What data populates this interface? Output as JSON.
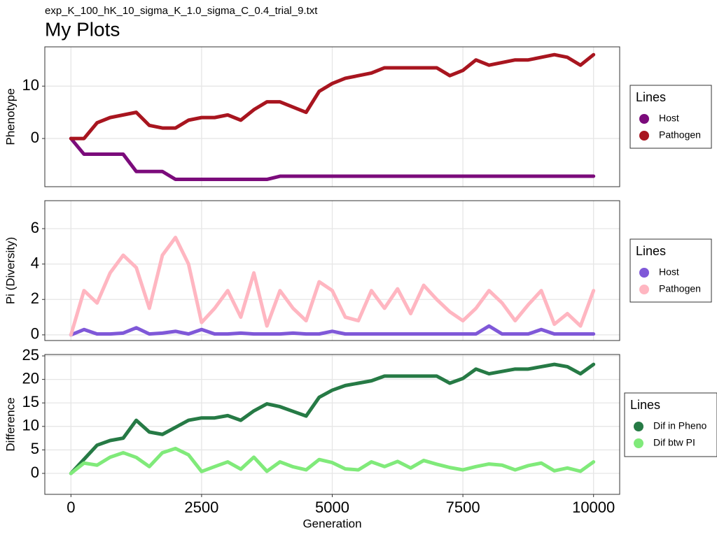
{
  "chart_data": [
    {
      "type": "line",
      "subtitle": "exp_K_100_hK_10_sigma_K_1.0_sigma_C_0.4_trial_9.txt",
      "title": "My Plots",
      "ylabel": "Phenotype",
      "legend_title": "Lines",
      "legend": "right",
      "grid": true,
      "xlim": [
        -500,
        10500
      ],
      "xticks": [
        0,
        2500,
        5000,
        7500,
        10000
      ],
      "ylim": [
        -9.2,
        17.5
      ],
      "yticks": [
        0,
        10
      ],
      "x": [
        0,
        250,
        500,
        750,
        1000,
        1250,
        1500,
        1750,
        2000,
        2250,
        2500,
        2750,
        3000,
        3250,
        3500,
        3750,
        4000,
        4250,
        4500,
        4750,
        5000,
        5250,
        5500,
        5750,
        6000,
        6250,
        6500,
        6750,
        7000,
        7250,
        7500,
        7750,
        8000,
        8250,
        8500,
        8750,
        9000,
        9250,
        9500,
        9750,
        10000
      ],
      "series": [
        {
          "name": "Host",
          "color": "#7b0b7b",
          "values": [
            0,
            -3,
            -3,
            -3,
            -3,
            -6.3,
            -6.3,
            -6.3,
            -7.8,
            -7.8,
            -7.8,
            -7.8,
            -7.8,
            -7.8,
            -7.8,
            -7.8,
            -7.2,
            -7.2,
            -7.2,
            -7.2,
            -7.2,
            -7.2,
            -7.2,
            -7.2,
            -7.2,
            -7.2,
            -7.2,
            -7.2,
            -7.2,
            -7.2,
            -7.2,
            -7.2,
            -7.2,
            -7.2,
            -7.2,
            -7.2,
            -7.2,
            -7.2,
            -7.2,
            -7.2,
            -7.2
          ]
        },
        {
          "name": "Pathogen",
          "color": "#a8151f",
          "values": [
            0,
            0,
            3,
            4,
            4.5,
            5,
            2.5,
            2,
            2,
            3.5,
            4,
            4,
            4.5,
            3.5,
            5.5,
            7,
            7,
            6,
            5,
            9,
            10.5,
            11.5,
            12,
            12.5,
            13.5,
            13.5,
            13.5,
            13.5,
            13.5,
            12,
            13,
            15,
            14,
            14.5,
            15,
            15,
            15.5,
            16,
            15.5,
            14,
            16
          ]
        }
      ]
    },
    {
      "type": "line",
      "ylabel": "Pi (Diversity)",
      "legend_title": "Lines",
      "legend": "right",
      "grid": true,
      "xlim": [
        -500,
        10500
      ],
      "xticks": [
        0,
        2500,
        5000,
        7500,
        10000
      ],
      "ylim": [
        -0.32,
        7.58
      ],
      "yticks": [
        0,
        2,
        4,
        6
      ],
      "x": [
        0,
        250,
        500,
        750,
        1000,
        1250,
        1500,
        1750,
        2000,
        2250,
        2500,
        2750,
        3000,
        3250,
        3500,
        3750,
        4000,
        4250,
        4500,
        4750,
        5000,
        5250,
        5500,
        5750,
        6000,
        6250,
        6500,
        6750,
        7000,
        7250,
        7500,
        7750,
        8000,
        8250,
        8500,
        8750,
        9000,
        9250,
        9500,
        9750,
        10000
      ],
      "series": [
        {
          "name": "Host",
          "color": "#7f58d8",
          "values": [
            0,
            0.3,
            0.05,
            0.05,
            0.1,
            0.4,
            0.05,
            0.1,
            0.2,
            0.05,
            0.3,
            0.05,
            0.05,
            0.1,
            0.05,
            0.05,
            0.05,
            0.1,
            0.05,
            0.05,
            0.2,
            0.05,
            0.05,
            0.05,
            0.05,
            0.05,
            0.05,
            0.05,
            0.05,
            0.05,
            0.05,
            0.05,
            0.5,
            0.05,
            0.05,
            0.05,
            0.3,
            0.05,
            0.05,
            0.05,
            0.05
          ]
        },
        {
          "name": "Pathogen",
          "color": "#ffb6c1",
          "values": [
            0,
            2.5,
            1.8,
            3.5,
            4.5,
            3.8,
            1.5,
            4.5,
            5.5,
            4,
            0.7,
            1.5,
            2.5,
            1,
            3.5,
            0.5,
            2.5,
            1.5,
            0.8,
            3,
            2.5,
            1,
            0.8,
            2.5,
            1.5,
            2.6,
            1.2,
            2.8,
            2,
            1.3,
            0.8,
            1.5,
            2.5,
            1.8,
            0.8,
            1.7,
            2.5,
            0.6,
            1.2,
            0.5,
            2.5
          ]
        }
      ]
    },
    {
      "type": "line",
      "ylabel": "Difference",
      "xlabel": "Generation",
      "legend_title": "Lines",
      "legend": "right",
      "grid": true,
      "xlim": [
        -500,
        10500
      ],
      "xticks": [
        0,
        2500,
        5000,
        7500,
        10000
      ],
      "ylim": [
        -4.46,
        25.3
      ],
      "yticks": [
        0,
        5,
        10,
        15,
        20,
        25
      ],
      "x": [
        0,
        250,
        500,
        750,
        1000,
        1250,
        1500,
        1750,
        2000,
        2250,
        2500,
        2750,
        3000,
        3250,
        3500,
        3750,
        4000,
        4250,
        4500,
        4750,
        5000,
        5250,
        5500,
        5750,
        6000,
        6250,
        6500,
        6750,
        7000,
        7250,
        7500,
        7750,
        8000,
        8250,
        8500,
        8750,
        9000,
        9250,
        9500,
        9750,
        10000
      ],
      "series": [
        {
          "name": "Dif in Pheno",
          "color": "#267a45",
          "values": [
            0,
            3,
            6,
            7,
            7.5,
            11.3,
            8.8,
            8.3,
            9.8,
            11.3,
            11.8,
            11.8,
            12.3,
            11.3,
            13.3,
            14.8,
            14.2,
            13.2,
            12.2,
            16.2,
            17.7,
            18.7,
            19.2,
            19.7,
            20.7,
            20.7,
            20.7,
            20.7,
            20.7,
            19.2,
            20.2,
            22.2,
            21.2,
            21.7,
            22.2,
            22.2,
            22.7,
            23.2,
            22.7,
            21.2,
            23.2
          ]
        },
        {
          "name": "Dif btw PI",
          "color": "#80ea7a",
          "values": [
            0,
            2.2,
            1.75,
            3.45,
            4.4,
            3.4,
            1.45,
            4.4,
            5.3,
            3.95,
            0.4,
            1.45,
            2.45,
            0.9,
            3.45,
            0.45,
            2.45,
            1.4,
            0.75,
            2.95,
            2.3,
            0.95,
            0.75,
            2.45,
            1.45,
            2.55,
            1.15,
            2.75,
            1.95,
            1.25,
            0.75,
            1.45,
            2.0,
            1.75,
            0.75,
            1.65,
            2.2,
            0.55,
            1.15,
            0.45,
            2.45
          ]
        }
      ]
    }
  ]
}
